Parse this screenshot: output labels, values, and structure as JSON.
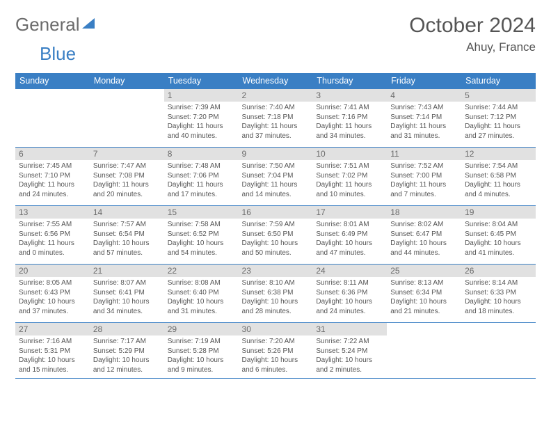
{
  "brand": {
    "part1": "General",
    "part2": "Blue"
  },
  "title": "October 2024",
  "location": "Ahuy, France",
  "colors": {
    "accent": "#3a7fc4",
    "daynum_bg": "#e1e1e1",
    "text": "#555555"
  },
  "daysOfWeek": [
    "Sunday",
    "Monday",
    "Tuesday",
    "Wednesday",
    "Thursday",
    "Friday",
    "Saturday"
  ],
  "weeks": [
    [
      null,
      null,
      {
        "n": "1",
        "sr": "Sunrise: 7:39 AM",
        "ss": "Sunset: 7:20 PM",
        "dl": "Daylight: 11 hours and 40 minutes."
      },
      {
        "n": "2",
        "sr": "Sunrise: 7:40 AM",
        "ss": "Sunset: 7:18 PM",
        "dl": "Daylight: 11 hours and 37 minutes."
      },
      {
        "n": "3",
        "sr": "Sunrise: 7:41 AM",
        "ss": "Sunset: 7:16 PM",
        "dl": "Daylight: 11 hours and 34 minutes."
      },
      {
        "n": "4",
        "sr": "Sunrise: 7:43 AM",
        "ss": "Sunset: 7:14 PM",
        "dl": "Daylight: 11 hours and 31 minutes."
      },
      {
        "n": "5",
        "sr": "Sunrise: 7:44 AM",
        "ss": "Sunset: 7:12 PM",
        "dl": "Daylight: 11 hours and 27 minutes."
      }
    ],
    [
      {
        "n": "6",
        "sr": "Sunrise: 7:45 AM",
        "ss": "Sunset: 7:10 PM",
        "dl": "Daylight: 11 hours and 24 minutes."
      },
      {
        "n": "7",
        "sr": "Sunrise: 7:47 AM",
        "ss": "Sunset: 7:08 PM",
        "dl": "Daylight: 11 hours and 20 minutes."
      },
      {
        "n": "8",
        "sr": "Sunrise: 7:48 AM",
        "ss": "Sunset: 7:06 PM",
        "dl": "Daylight: 11 hours and 17 minutes."
      },
      {
        "n": "9",
        "sr": "Sunrise: 7:50 AM",
        "ss": "Sunset: 7:04 PM",
        "dl": "Daylight: 11 hours and 14 minutes."
      },
      {
        "n": "10",
        "sr": "Sunrise: 7:51 AM",
        "ss": "Sunset: 7:02 PM",
        "dl": "Daylight: 11 hours and 10 minutes."
      },
      {
        "n": "11",
        "sr": "Sunrise: 7:52 AM",
        "ss": "Sunset: 7:00 PM",
        "dl": "Daylight: 11 hours and 7 minutes."
      },
      {
        "n": "12",
        "sr": "Sunrise: 7:54 AM",
        "ss": "Sunset: 6:58 PM",
        "dl": "Daylight: 11 hours and 4 minutes."
      }
    ],
    [
      {
        "n": "13",
        "sr": "Sunrise: 7:55 AM",
        "ss": "Sunset: 6:56 PM",
        "dl": "Daylight: 11 hours and 0 minutes."
      },
      {
        "n": "14",
        "sr": "Sunrise: 7:57 AM",
        "ss": "Sunset: 6:54 PM",
        "dl": "Daylight: 10 hours and 57 minutes."
      },
      {
        "n": "15",
        "sr": "Sunrise: 7:58 AM",
        "ss": "Sunset: 6:52 PM",
        "dl": "Daylight: 10 hours and 54 minutes."
      },
      {
        "n": "16",
        "sr": "Sunrise: 7:59 AM",
        "ss": "Sunset: 6:50 PM",
        "dl": "Daylight: 10 hours and 50 minutes."
      },
      {
        "n": "17",
        "sr": "Sunrise: 8:01 AM",
        "ss": "Sunset: 6:49 PM",
        "dl": "Daylight: 10 hours and 47 minutes."
      },
      {
        "n": "18",
        "sr": "Sunrise: 8:02 AM",
        "ss": "Sunset: 6:47 PM",
        "dl": "Daylight: 10 hours and 44 minutes."
      },
      {
        "n": "19",
        "sr": "Sunrise: 8:04 AM",
        "ss": "Sunset: 6:45 PM",
        "dl": "Daylight: 10 hours and 41 minutes."
      }
    ],
    [
      {
        "n": "20",
        "sr": "Sunrise: 8:05 AM",
        "ss": "Sunset: 6:43 PM",
        "dl": "Daylight: 10 hours and 37 minutes."
      },
      {
        "n": "21",
        "sr": "Sunrise: 8:07 AM",
        "ss": "Sunset: 6:41 PM",
        "dl": "Daylight: 10 hours and 34 minutes."
      },
      {
        "n": "22",
        "sr": "Sunrise: 8:08 AM",
        "ss": "Sunset: 6:40 PM",
        "dl": "Daylight: 10 hours and 31 minutes."
      },
      {
        "n": "23",
        "sr": "Sunrise: 8:10 AM",
        "ss": "Sunset: 6:38 PM",
        "dl": "Daylight: 10 hours and 28 minutes."
      },
      {
        "n": "24",
        "sr": "Sunrise: 8:11 AM",
        "ss": "Sunset: 6:36 PM",
        "dl": "Daylight: 10 hours and 24 minutes."
      },
      {
        "n": "25",
        "sr": "Sunrise: 8:13 AM",
        "ss": "Sunset: 6:34 PM",
        "dl": "Daylight: 10 hours and 21 minutes."
      },
      {
        "n": "26",
        "sr": "Sunrise: 8:14 AM",
        "ss": "Sunset: 6:33 PM",
        "dl": "Daylight: 10 hours and 18 minutes."
      }
    ],
    [
      {
        "n": "27",
        "sr": "Sunrise: 7:16 AM",
        "ss": "Sunset: 5:31 PM",
        "dl": "Daylight: 10 hours and 15 minutes."
      },
      {
        "n": "28",
        "sr": "Sunrise: 7:17 AM",
        "ss": "Sunset: 5:29 PM",
        "dl": "Daylight: 10 hours and 12 minutes."
      },
      {
        "n": "29",
        "sr": "Sunrise: 7:19 AM",
        "ss": "Sunset: 5:28 PM",
        "dl": "Daylight: 10 hours and 9 minutes."
      },
      {
        "n": "30",
        "sr": "Sunrise: 7:20 AM",
        "ss": "Sunset: 5:26 PM",
        "dl": "Daylight: 10 hours and 6 minutes."
      },
      {
        "n": "31",
        "sr": "Sunrise: 7:22 AM",
        "ss": "Sunset: 5:24 PM",
        "dl": "Daylight: 10 hours and 2 minutes."
      },
      null,
      null
    ]
  ]
}
